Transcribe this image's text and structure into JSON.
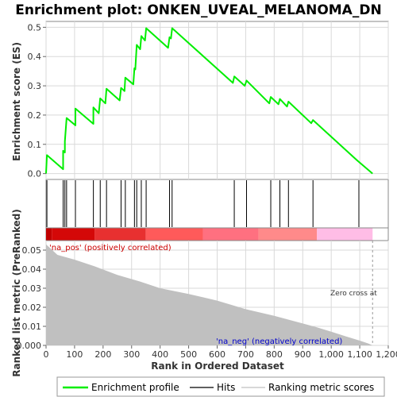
{
  "chart_data": {
    "type": "line",
    "title": "Enrichment plot: ONKEN_UVEAL_MELANOMA_DN",
    "xlabel": "Rank in Ordered Dataset",
    "ylabel_top": "Enrichment score (ES)",
    "ylabel_bottom": "Ranked list metric (PreRanked)",
    "xlim": [
      0,
      1200
    ],
    "x_ticks": [
      "0",
      "100",
      "200",
      "300",
      "400",
      "500",
      "600",
      "700",
      "800",
      "900",
      "1,000",
      "1,100",
      "1,200"
    ],
    "es_ylim": [
      -0.02,
      0.52
    ],
    "es_ticks": [
      "0.0",
      "0.1",
      "0.2",
      "0.3",
      "0.4",
      "0.5"
    ],
    "metric_ylim": [
      0,
      0.055
    ],
    "metric_ticks": [
      "0.000",
      "0.01",
      "0.02",
      "0.03",
      "0.04",
      "0.05"
    ],
    "zero_cross_rank": 1145,
    "zero_cross_label": "Zero cross at",
    "pos_label": "'na_pos' (positively correlated)",
    "neg_label": "'na_neg' (negatively correlated)",
    "hit_ranks": [
      3,
      60,
      66,
      72,
      103,
      166,
      190,
      212,
      263,
      278,
      310,
      318,
      334,
      351,
      433,
      442,
      660,
      703,
      788,
      820,
      850,
      936,
      1097
    ],
    "es_points": [
      [
        0,
        0.0
      ],
      [
        3,
        0.063
      ],
      [
        60,
        0.015
      ],
      [
        60,
        0.078
      ],
      [
        66,
        0.072
      ],
      [
        66,
        0.11
      ],
      [
        72,
        0.19
      ],
      [
        103,
        0.165
      ],
      [
        103,
        0.222
      ],
      [
        166,
        0.17
      ],
      [
        166,
        0.226
      ],
      [
        185,
        0.206
      ],
      [
        190,
        0.257
      ],
      [
        208,
        0.24
      ],
      [
        212,
        0.29
      ],
      [
        258,
        0.25
      ],
      [
        263,
        0.293
      ],
      [
        275,
        0.282
      ],
      [
        278,
        0.328
      ],
      [
        306,
        0.305
      ],
      [
        310,
        0.36
      ],
      [
        313,
        0.356
      ],
      [
        318,
        0.44
      ],
      [
        330,
        0.425
      ],
      [
        334,
        0.47
      ],
      [
        347,
        0.455
      ],
      [
        351,
        0.497
      ],
      [
        428,
        0.43
      ],
      [
        433,
        0.466
      ],
      [
        438,
        0.462
      ],
      [
        442,
        0.497
      ],
      [
        655,
        0.31
      ],
      [
        660,
        0.332
      ],
      [
        697,
        0.3
      ],
      [
        703,
        0.318
      ],
      [
        783,
        0.24
      ],
      [
        788,
        0.262
      ],
      [
        815,
        0.237
      ],
      [
        820,
        0.255
      ],
      [
        845,
        0.229
      ],
      [
        850,
        0.246
      ],
      [
        930,
        0.172
      ],
      [
        936,
        0.183
      ],
      [
        1090,
        0.046
      ],
      [
        1097,
        0.04
      ],
      [
        1145,
        0.0
      ]
    ],
    "metric_profile": [
      [
        0,
        0.053
      ],
      [
        40,
        0.0475
      ],
      [
        100,
        0.045
      ],
      [
        170,
        0.0415
      ],
      [
        250,
        0.037
      ],
      [
        330,
        0.0335
      ],
      [
        400,
        0.03
      ],
      [
        500,
        0.027
      ],
      [
        600,
        0.0235
      ],
      [
        700,
        0.019
      ],
      [
        800,
        0.0155
      ],
      [
        900,
        0.0115
      ],
      [
        950,
        0.0095
      ],
      [
        1000,
        0.0072
      ],
      [
        1050,
        0.0048
      ],
      [
        1100,
        0.0025
      ],
      [
        1130,
        0.001
      ],
      [
        1145,
        0.0
      ]
    ],
    "heat_segments": [
      {
        "from": 0,
        "to": 20,
        "color": "#c00000"
      },
      {
        "from": 20,
        "to": 170,
        "color": "#d40808"
      },
      {
        "from": 170,
        "to": 350,
        "color": "#e83030"
      },
      {
        "from": 350,
        "to": 550,
        "color": "#ff5a5a"
      },
      {
        "from": 550,
        "to": 745,
        "color": "#ff7080"
      },
      {
        "from": 745,
        "to": 950,
        "color": "#ff8a8a"
      },
      {
        "from": 950,
        "to": 1145,
        "color": "#ffbde6"
      }
    ],
    "legend": [
      "Enrichment profile",
      "Hits",
      "Ranking metric scores"
    ],
    "colors": {
      "es_line": "#00ee00",
      "hit": "#000000",
      "metric_fill": "#c0c0c0",
      "grid": "#d9d9d9",
      "frame": "#888888"
    }
  }
}
